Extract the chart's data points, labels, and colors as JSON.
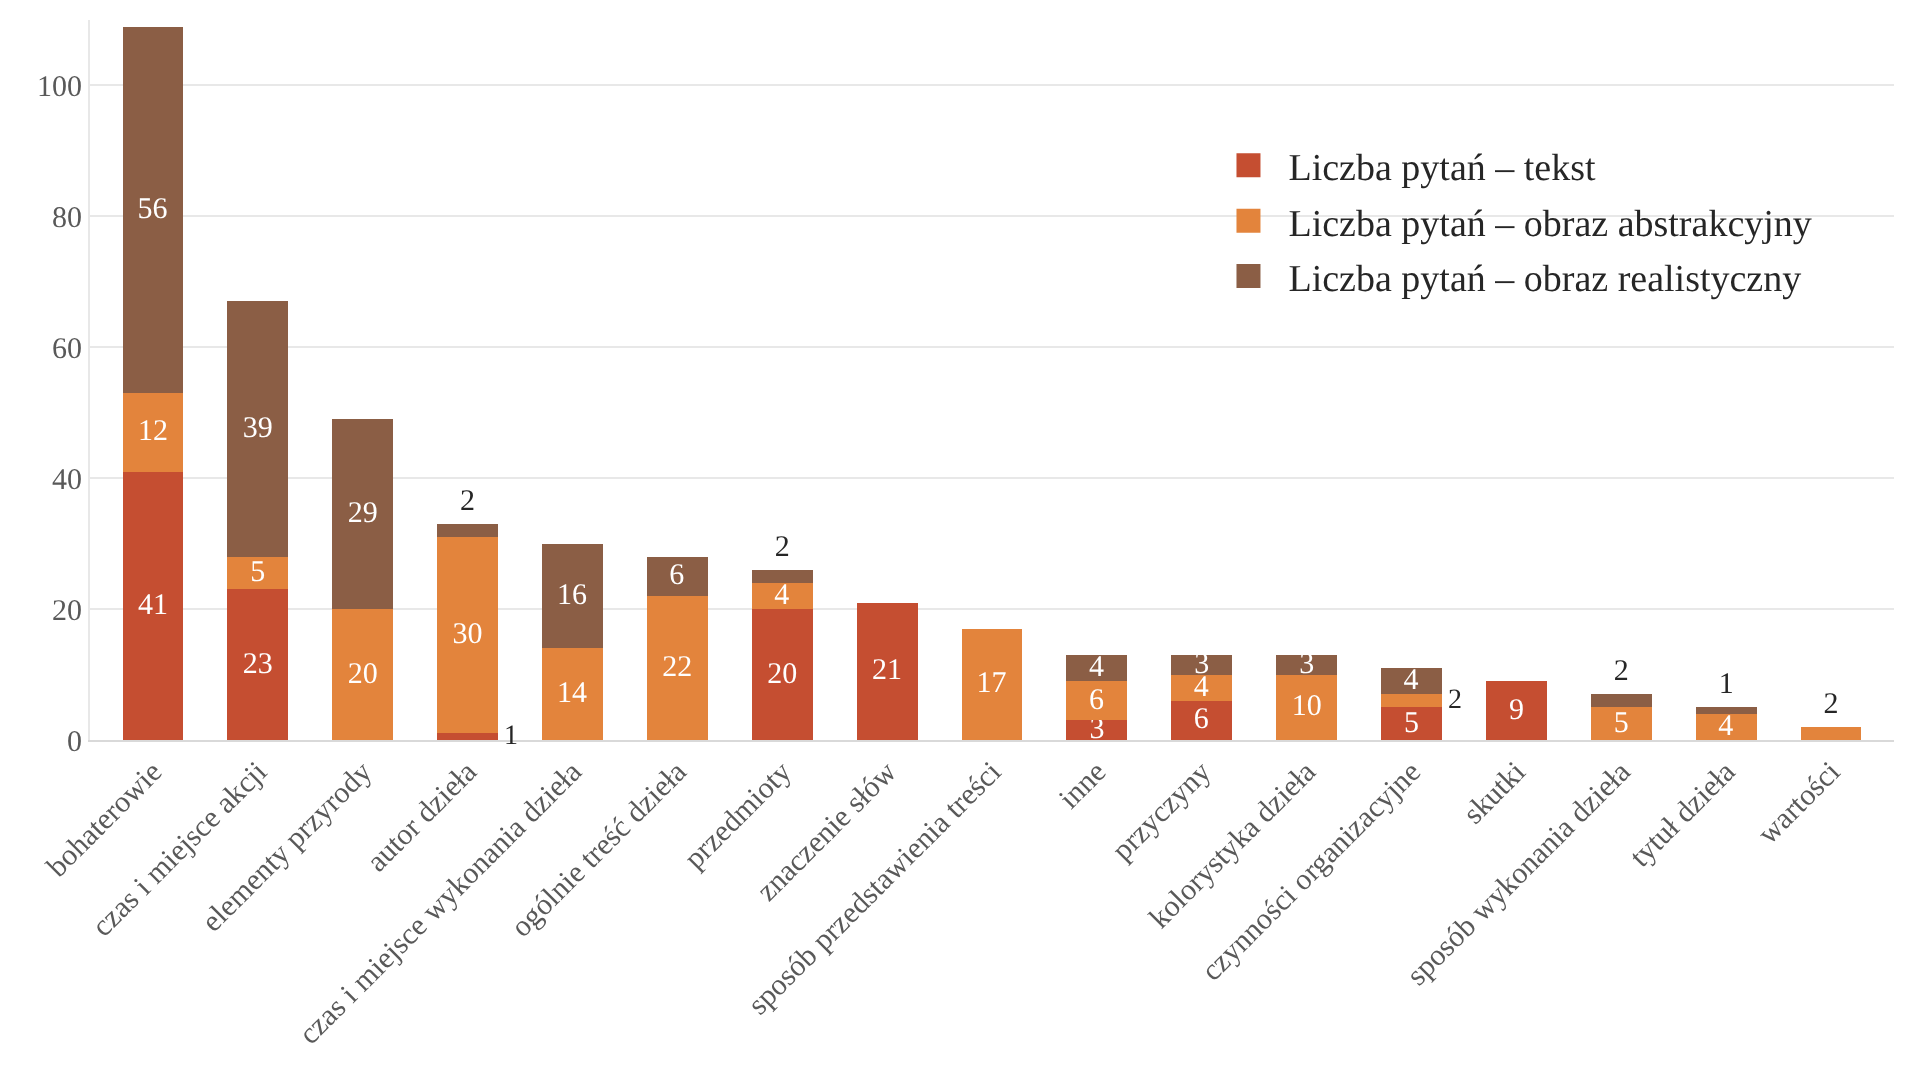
{
  "chart_data": {
    "type": "bar",
    "stacked": true,
    "categories": [
      "bohaterowie",
      "czas i miejsce akcji",
      "elementy przyrody",
      "autor dzieła",
      "czas i miejsce wykonania dzieła",
      "ogólnie treść dzieła",
      "przedmioty",
      "znaczenie słów",
      "sposób przedstawienia treści",
      "inne",
      "przyczyny",
      "kolorystyka dzieła",
      "czynności organizacyjne",
      "skutki",
      "sposób wykonania dzieła",
      "tytuł dzieła",
      "wartości"
    ],
    "series": [
      {
        "name": "Liczba pytań – tekst",
        "color": "#c54e31",
        "values": [
          41,
          23,
          0,
          1,
          0,
          0,
          20,
          21,
          0,
          3,
          6,
          0,
          5,
          9,
          0,
          0,
          0
        ],
        "value_labels": [
          "41",
          "23",
          null,
          "1",
          null,
          null,
          "20",
          "21",
          null,
          "3",
          "6",
          null,
          "5",
          "9",
          null,
          null,
          null
        ]
      },
      {
        "name": "Liczba pytań – obraz abstrakcyjny",
        "color": "#e3843c",
        "values": [
          12,
          5,
          20,
          30,
          14,
          22,
          4,
          0,
          17,
          6,
          4,
          10,
          2,
          0,
          5,
          4,
          2
        ],
        "value_labels": [
          "12",
          "5",
          "20",
          "30",
          "14",
          "22",
          "4",
          null,
          "17",
          "6",
          "4",
          "10",
          "2",
          null,
          "5",
          "4",
          "2"
        ]
      },
      {
        "name": "Liczba pytań – obraz realistyczny",
        "color": "#8b5e45",
        "values": [
          56,
          39,
          29,
          2,
          16,
          6,
          2,
          0,
          0,
          4,
          3,
          3,
          4,
          0,
          2,
          1,
          0
        ],
        "value_labels": [
          "56",
          "39",
          "29",
          "2",
          "16",
          "6",
          "2",
          null,
          null,
          "4",
          "3",
          "3",
          "4",
          null,
          "2",
          "1",
          null
        ]
      }
    ],
    "ylim": [
      0,
      110
    ],
    "yticks": [
      0,
      20,
      40,
      60,
      80,
      100
    ],
    "grid": "y",
    "legend": "right"
  }
}
